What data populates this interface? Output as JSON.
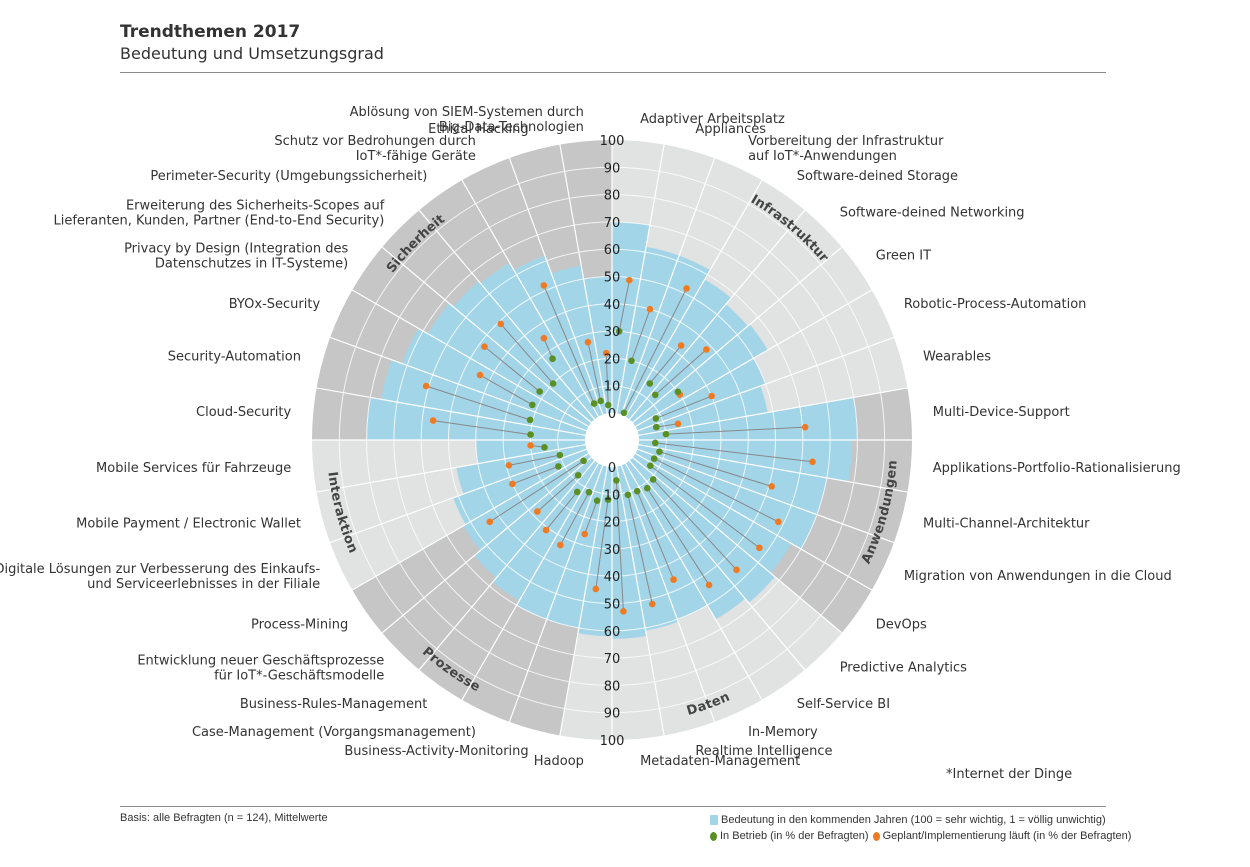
{
  "header": {
    "title": "Trendthemen 2017",
    "subtitle": "Bedeutung und Umsetzungsgrad"
  },
  "footer": {
    "basis": "Basis: alle Befragten (n = 124), Mittelwerte",
    "iot_note": "*Internet der Dinge"
  },
  "legend": {
    "importance": "Bedeutung in den kommenden Jahren (100 = sehr wichtig, 1 = völlig unwichtig)",
    "in_operation": "In Betrieb (in % der Befragten)",
    "planned": "Geplant/Implementierung läuft (in % der Befragten)"
  },
  "colors": {
    "importance": "#a3d5e9",
    "in_operation": "#5a8f23",
    "planned": "#ef7a22",
    "sector_dark": "#c6c6c7",
    "sector_light": "#e1e2e2"
  },
  "chart_data": {
    "type": "polar-bar",
    "title": "Trendthemen 2017",
    "subtitle": "Bedeutung und Umsetzungsgrad",
    "radial_axis": {
      "range": [
        0,
        100
      ],
      "ticks": [
        0,
        10,
        20,
        30,
        40,
        50,
        60,
        70,
        80,
        90,
        100
      ]
    },
    "categories": [
      {
        "name": "Infrastruktur",
        "shade": "light",
        "items": [
          0,
          7
        ]
      },
      {
        "name": "Anwendungen",
        "shade": "dark",
        "items": [
          8,
          12
        ]
      },
      {
        "name": "Daten",
        "shade": "light",
        "items": [
          13,
          18
        ]
      },
      {
        "name": "Prozesse",
        "shade": "dark",
        "items": [
          19,
          23
        ]
      },
      {
        "name": "Interaktion",
        "shade": "light",
        "items": [
          24,
          26
        ]
      },
      {
        "name": "Sicherheit",
        "shade": "dark",
        "items": [
          27,
          35
        ]
      }
    ],
    "items": [
      {
        "label": "Adaptiver Arbeitsplatz",
        "importance": 70,
        "in_operation": 30,
        "planned": 49
      },
      {
        "label": "Appliances",
        "importance": 62,
        "in_operation": 20,
        "planned": 40
      },
      {
        "label": "Vorbereitung der Infrastruktur auf IoT*-Anwendungen",
        "importance": 62,
        "in_operation": 1,
        "planned": 52
      },
      {
        "label": "Software-deined Storage",
        "importance": 58,
        "in_operation": 15,
        "planned": 33
      },
      {
        "label": "Software-deined Networking",
        "importance": 55,
        "in_operation": 13,
        "planned": 38
      },
      {
        "label": "Green IT",
        "importance": 56,
        "in_operation": 20,
        "planned": 20
      },
      {
        "label": "Robotic-Process-Automation",
        "importance": 50,
        "in_operation": 8,
        "planned": 30
      },
      {
        "label": "Wearables",
        "importance": 48,
        "in_operation": 7,
        "planned": 15
      },
      {
        "label": "Multi-Device-Support",
        "importance": 80,
        "in_operation": 10,
        "planned": 61
      },
      {
        "label": "Applikations-Portfolio-Rationalisierung",
        "importance": 78,
        "in_operation": 6,
        "planned": 64
      },
      {
        "label": "Multi-Channel-Architektur",
        "importance": 70,
        "in_operation": 8,
        "planned": 51
      },
      {
        "label": "Migration von Anwendungen in die Cloud",
        "importance": 70,
        "in_operation": 7,
        "planned": 58
      },
      {
        "label": "DevOps",
        "importance": 66,
        "in_operation": 7,
        "planned": 57
      },
      {
        "label": "Predictive Analytics",
        "importance": 68,
        "in_operation": 11,
        "planned": 56
      },
      {
        "label": "Self-Service BI",
        "importance": 66,
        "in_operation": 12,
        "planned": 54
      },
      {
        "label": "In-Memory",
        "importance": 60,
        "in_operation": 11,
        "planned": 46
      },
      {
        "label": "Realtime Intelligence",
        "importance": 61,
        "in_operation": 11,
        "planned": 52
      },
      {
        "label": "Metadaten-Management",
        "importance": 63,
        "in_operation": 5,
        "planned": 53
      },
      {
        "label": "Hadoop",
        "importance": 62,
        "in_operation": 12,
        "planned": 45
      },
      {
        "label": "Business-Activity-Monitoring",
        "importance": 60,
        "in_operation": 13,
        "planned": 26
      },
      {
        "label": "Case-Management (Vorgangsmanagement)",
        "importance": 60,
        "in_operation": 11,
        "planned": 33
      },
      {
        "label": "Business-Rules-Management",
        "importance": 58,
        "in_operation": 13,
        "planned": 31
      },
      {
        "label": "Entwicklung neuer Geschäftsprozesse für IoT*-Geschäftsmodelle",
        "importance": 56,
        "in_operation": 8,
        "planned": 28
      },
      {
        "label": "Process-Mining",
        "importance": 53,
        "in_operation": 3,
        "planned": 44
      },
      {
        "label": "Digitale Lösungen zur Verbesserung des Einkaufs- und Serviceerlebnisses in der Filiale",
        "importance": 52,
        "in_operation": 12,
        "planned": 30
      },
      {
        "label": "Mobile Payment / Electronic Wallet",
        "importance": 48,
        "in_operation": 10,
        "planned": 29
      },
      {
        "label": "Mobile Services für Fahrzeuge",
        "importance": 40,
        "in_operation": 15,
        "planned": 20
      },
      {
        "label": "Cloud-Security",
        "importance": 80,
        "in_operation": 20,
        "planned": 56
      },
      {
        "label": "Security-Automation",
        "importance": 76,
        "in_operation": 21,
        "planned": 61
      },
      {
        "label": "BYOx-Security",
        "importance": 72,
        "in_operation": 22,
        "planned": 44
      },
      {
        "label": "Privacy by Design (Integration des Datenschutzes in IT-Systeme)",
        "importance": 68,
        "in_operation": 22,
        "planned": 48
      },
      {
        "label": "Erweiterung des Sicherheits-Scopes auf Lieferanten, Kunden, Partner (End-to-End Security)",
        "importance": 66,
        "in_operation": 20,
        "planned": 49
      },
      {
        "label": "Perimeter-Security (Umgebungssicherheit)",
        "importance": 65,
        "in_operation": 27,
        "planned": 35
      },
      {
        "label": "Schutz vor Bedrohungen durch IoT*-fähige Geräte",
        "importance": 62,
        "in_operation": 5,
        "planned": 52
      },
      {
        "label": "Ethical Hacking",
        "importance": 55,
        "in_operation": 5,
        "planned": 27
      },
      {
        "label": "Ablösung von SIEM-Systemen durch Big-Data-Technologien",
        "importance": 50,
        "in_operation": 3,
        "planned": 22
      }
    ]
  }
}
